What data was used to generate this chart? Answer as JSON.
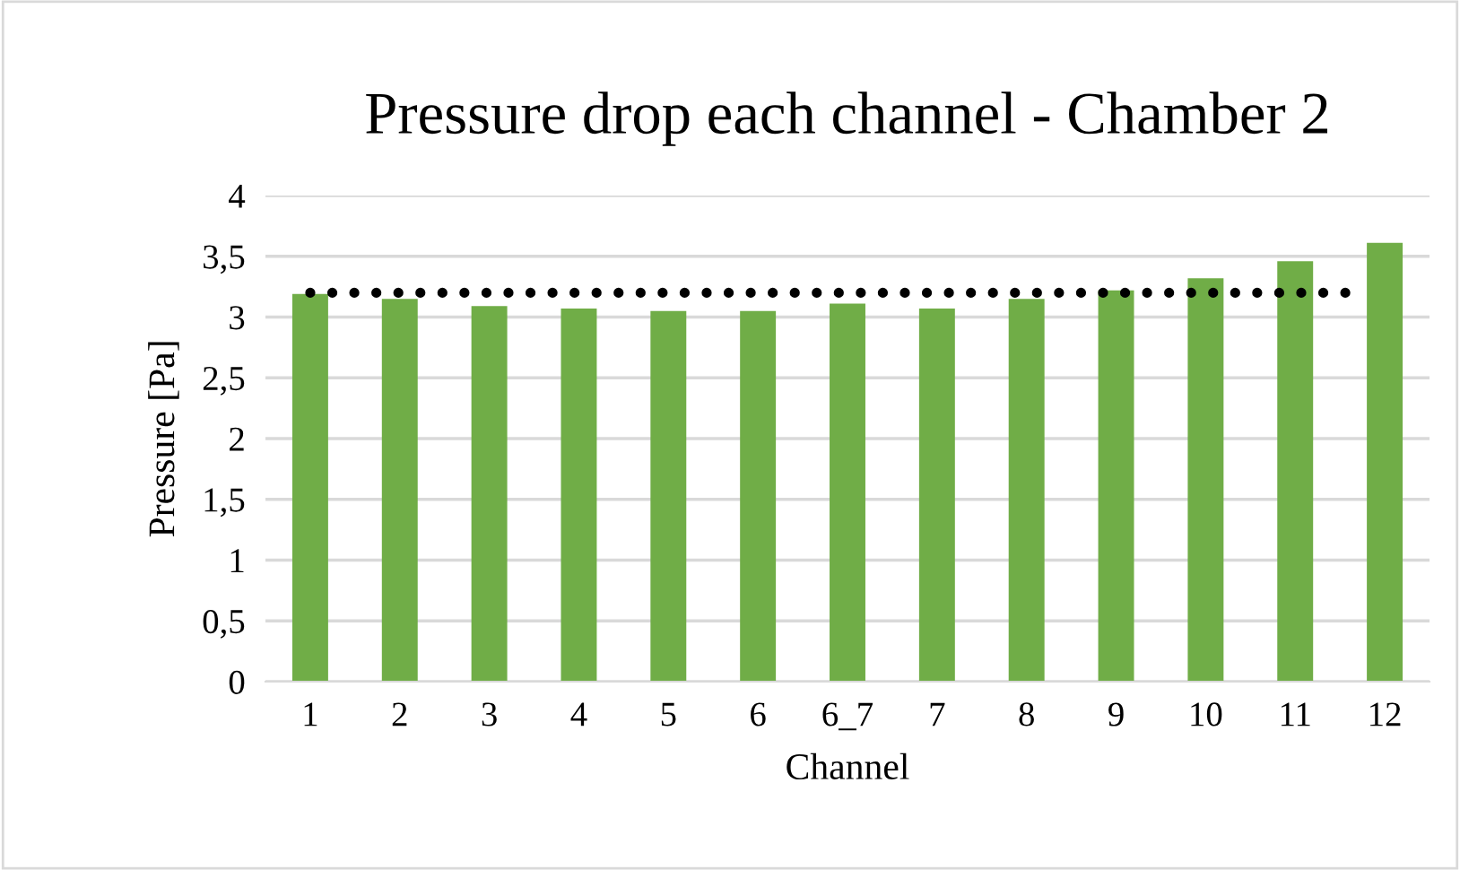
{
  "chart_data": {
    "type": "bar",
    "title": "Pressure drop each channel - Chamber 2",
    "xlabel": "Channel",
    "ylabel": "Pressure [Pa]",
    "categories": [
      "1",
      "2",
      "3",
      "4",
      "5",
      "6",
      "6_7",
      "7",
      "8",
      "9",
      "10",
      "11",
      "12"
    ],
    "values": [
      3.19,
      3.15,
      3.09,
      3.07,
      3.05,
      3.05,
      3.11,
      3.07,
      3.15,
      3.22,
      3.32,
      3.46,
      3.61
    ],
    "color": "#70ad47",
    "ylim": [
      0,
      4
    ],
    "yticks": [
      0,
      {
        "value": 0.5,
        "label": "0,5"
      },
      1,
      {
        "value": 1.5,
        "label": "1,5"
      },
      2,
      {
        "value": 2.5,
        "label": "2,5"
      },
      3,
      {
        "value": 3.5,
        "label": "3,5"
      },
      4
    ],
    "ref_lines": [
      {
        "axis": "y",
        "value": 3.2,
        "color": "#000000",
        "line_style": "dotted"
      }
    ],
    "grid": "y"
  }
}
